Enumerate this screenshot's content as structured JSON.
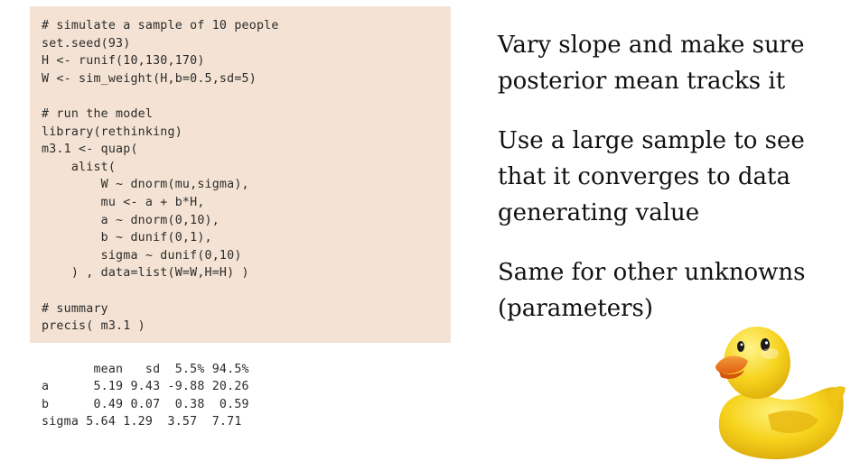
{
  "code": {
    "lines": [
      "# simulate a sample of 10 people",
      "set.seed(93)",
      "H <- runif(10,130,170)",
      "W <- sim_weight(H,b=0.5,sd=5)",
      "",
      "# run the model",
      "library(rethinking)",
      "m3.1 <- quap(",
      "    alist(",
      "        W ~ dnorm(mu,sigma),",
      "        mu <- a + b*H,",
      "        a ~ dnorm(0,10),",
      "        b ~ dunif(0,1),",
      "        sigma ~ dunif(0,10)",
      "    ) , data=list(W=W,H=H) )",
      "",
      "# summary",
      "precis( m3.1 )"
    ]
  },
  "output": {
    "lines": [
      "       mean   sd  5.5% 94.5%",
      "a      5.19 9.43 -9.88 20.26",
      "b      0.49 0.07  0.38  0.59",
      "sigma 5.64 1.29  3.57  7.71"
    ]
  },
  "notes": [
    "Vary slope and make sure posterior mean tracks it",
    "Use a large sample to see that it converges to data generating value",
    "Same for other unknowns (parameters)"
  ],
  "duck": {
    "icon": "rubber-duck-icon",
    "body_color": "#f6d21c",
    "beak_color": "#f07a1a"
  }
}
